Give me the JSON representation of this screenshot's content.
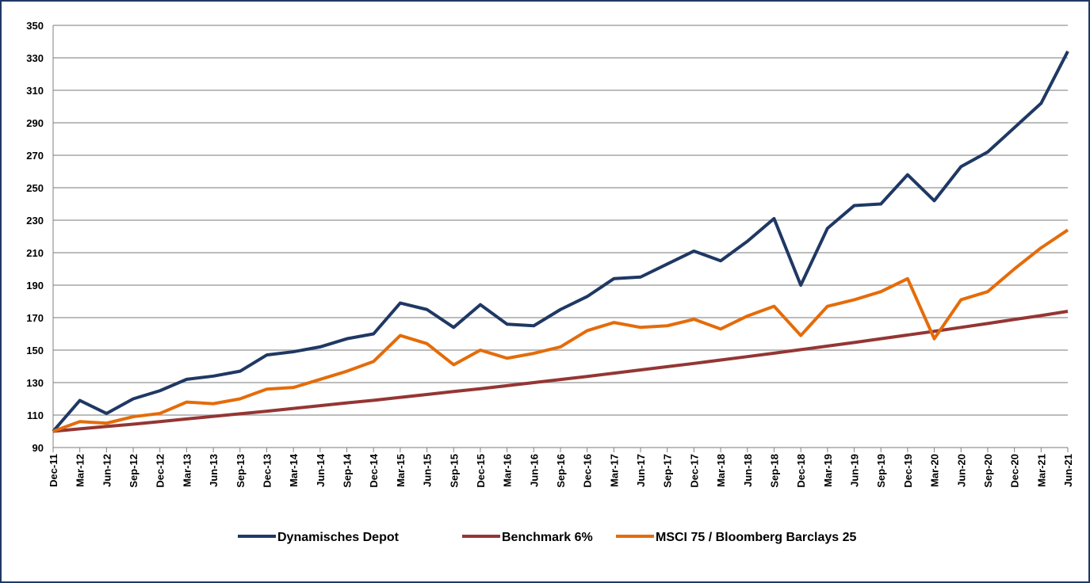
{
  "chart_data": {
    "type": "line",
    "categories": [
      "Dec-11",
      "Mar-12",
      "Jun-12",
      "Sep-12",
      "Dec-12",
      "Mar-13",
      "Jun-13",
      "Sep-13",
      "Dec-13",
      "Mar-14",
      "Jun-14",
      "Sep-14",
      "Dec-14",
      "Mar-15",
      "Jun-15",
      "Sep-15",
      "Dec-15",
      "Mar-16",
      "Jun-16",
      "Sep-16",
      "Dec-16",
      "Mar-17",
      "Jun-17",
      "Sep-17",
      "Dec-17",
      "Mar-18",
      "Jun-18",
      "Sep-18",
      "Dec-18",
      "Mar-19",
      "Jun-19",
      "Sep-19",
      "Dec-19",
      "Mar-20",
      "Jun-20",
      "Sep-20",
      "Dec-20",
      "Mar-21",
      "Jun-21"
    ],
    "series": [
      {
        "name": "Dynamisches Depot",
        "color": "#1f3864",
        "values": [
          100,
          119,
          111,
          120,
          125,
          132,
          134,
          137,
          147,
          149,
          152,
          157,
          160,
          179,
          175,
          164,
          178,
          166,
          165,
          175,
          183,
          194,
          195,
          203,
          211,
          205,
          217,
          231,
          190,
          225,
          239,
          240,
          258,
          242,
          263,
          272,
          287,
          302,
          334
        ]
      },
      {
        "name": "Benchmark 6%",
        "color": "#943634",
        "values": [
          100,
          101.5,
          103,
          104.4,
          106,
          107.6,
          109.2,
          110.8,
          112.4,
          114.1,
          115.8,
          117.5,
          119.1,
          120.9,
          122.7,
          124.5,
          126.2,
          128.1,
          130,
          131.9,
          133.8,
          135.8,
          137.8,
          139.8,
          141.8,
          143.9,
          146,
          148.1,
          150.3,
          152.5,
          154.7,
          157,
          159.3,
          161.6,
          164,
          166.4,
          168.9,
          171.3,
          173.9
        ]
      },
      {
        "name": "MSCI 75 / Bloomberg Barclays 25",
        "color": "#e46c0a",
        "values": [
          100,
          106,
          105,
          109,
          111,
          118,
          117,
          120,
          126,
          127,
          132,
          137,
          143,
          159,
          154,
          141,
          150,
          145,
          148,
          152,
          162,
          167,
          164,
          165,
          169,
          163,
          171,
          177,
          159,
          177,
          181,
          186,
          194,
          157,
          181,
          186,
          200,
          213,
          224
        ]
      }
    ],
    "ylim": [
      90,
      350
    ],
    "yticks": [
      90,
      110,
      130,
      150,
      170,
      190,
      210,
      230,
      250,
      270,
      290,
      310,
      330,
      350
    ],
    "grid": true
  }
}
